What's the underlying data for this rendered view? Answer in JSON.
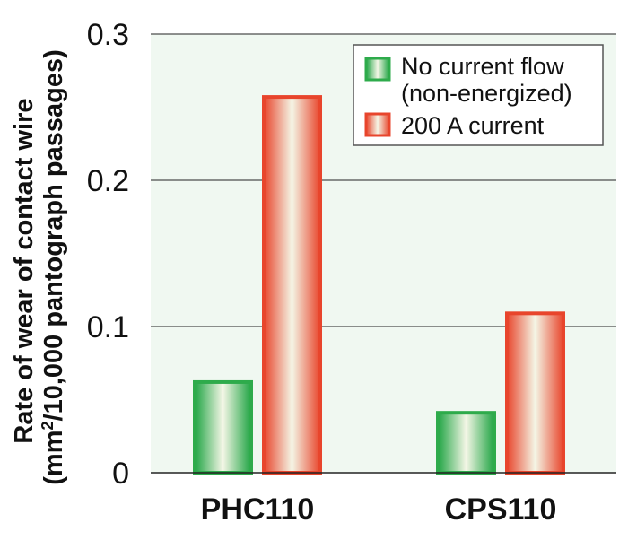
{
  "chart_data": {
    "type": "bar",
    "title": "",
    "categories": [
      "PHC110",
      "CPS110"
    ],
    "series": [
      {
        "name": "No current flow\n(non-energized)",
        "name_lines": [
          "No current flow",
          "(non-energized)"
        ],
        "values": [
          0.062,
          0.041
        ],
        "color": "#2eab4b"
      },
      {
        "name": "200 A current",
        "name_lines": [
          "200 A current"
        ],
        "values": [
          0.257,
          0.109
        ],
        "color": "#e8452c"
      }
    ],
    "xlabel": "",
    "ylabel_lines": [
      "Rate of wear of contact wire",
      "(mm²/10,000 pantograph passages)"
    ],
    "ylim": [
      0,
      0.3
    ],
    "yticks": [
      0,
      0.1,
      0.2,
      0.3
    ],
    "ytick_labels": [
      "0",
      "0.1",
      "0.2",
      "0.3"
    ],
    "grid": true,
    "legend_position": "top-right",
    "plot_background": "#f0f8f1"
  }
}
